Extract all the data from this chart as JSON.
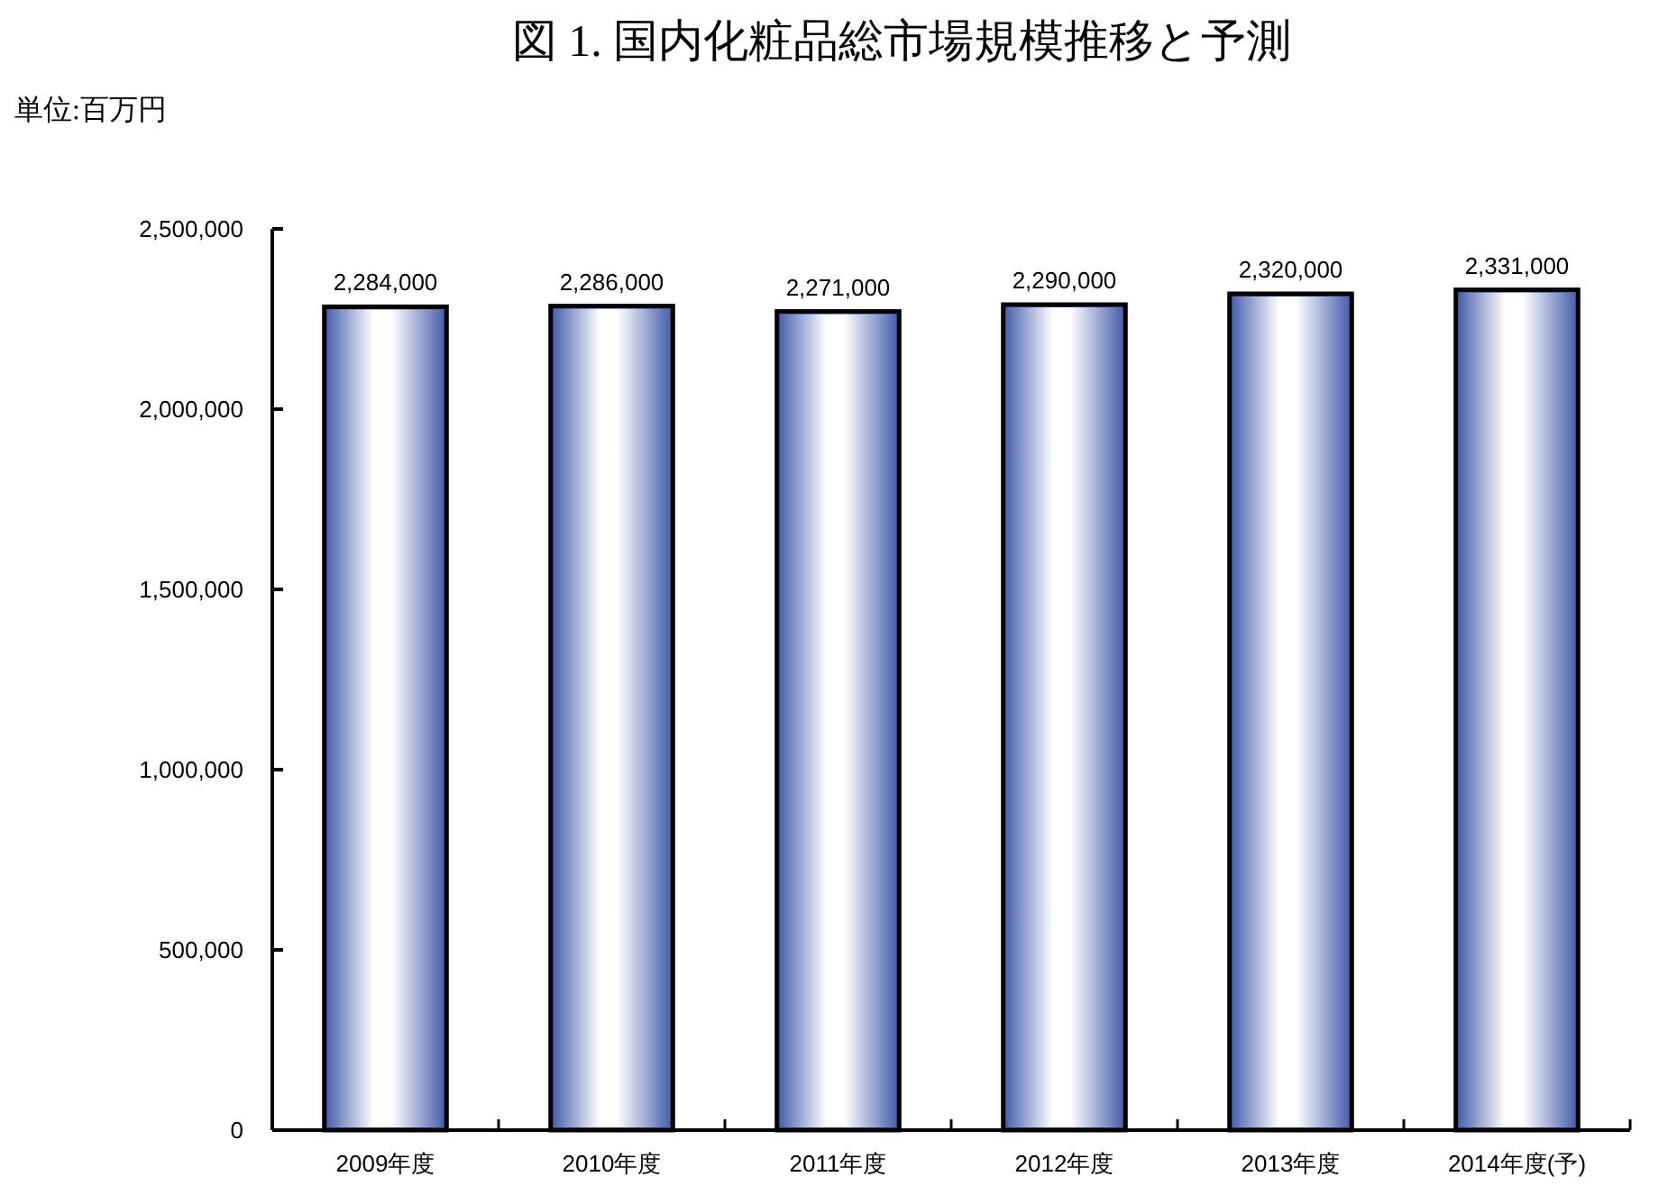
{
  "chart_data": {
    "type": "bar",
    "title": "図 1.  国内化粧品総市場規模推移と予測",
    "subtitle": "単位:百万円",
    "categories": [
      "2009年度",
      "2010年度",
      "2011年度",
      "2012年度",
      "2013年度",
      "2014年度(予)"
    ],
    "values": [
      2284000,
      2286000,
      2271000,
      2290000,
      2320000,
      2331000
    ],
    "color": "#4a62ad",
    "value_labels": [
      "2,284,000",
      "2,286,000",
      "2,271,000",
      "2,290,000",
      "2,320,000",
      "2,331,000"
    ],
    "ylim": [
      0,
      2500000
    ],
    "yticks": [
      {
        "value": 0,
        "label": "0"
      },
      {
        "value": 500000,
        "label": "500,000"
      },
      {
        "value": 1000000,
        "label": "1,000,000"
      },
      {
        "value": 1500000,
        "label": "1,500,000"
      },
      {
        "value": 2000000,
        "label": "2,000,000"
      },
      {
        "value": 2500000,
        "label": "2,500,000"
      }
    ],
    "grid": false
  }
}
